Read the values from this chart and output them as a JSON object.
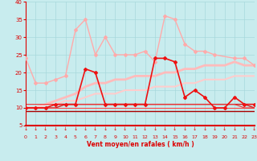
{
  "background_color": "#c8ecee",
  "grid_color": "#a8d8dc",
  "text_color": "#dd0000",
  "xlabel": "Vent moyen/en rafales ( km/h )",
  "xlim": [
    0,
    23
  ],
  "ylim": [
    5,
    40
  ],
  "yticks": [
    5,
    10,
    15,
    20,
    25,
    30,
    35,
    40
  ],
  "xticks": [
    0,
    1,
    2,
    3,
    4,
    5,
    6,
    7,
    8,
    9,
    10,
    11,
    12,
    13,
    14,
    15,
    16,
    17,
    18,
    19,
    20,
    21,
    22,
    23
  ],
  "series": [
    {
      "label": "rafales_max",
      "x": [
        0,
        1,
        2,
        3,
        4,
        5,
        6,
        7,
        8,
        9,
        10,
        11,
        12,
        13,
        14,
        15,
        16,
        17,
        18,
        19,
        21,
        22,
        23
      ],
      "y": [
        24,
        17,
        17,
        18,
        19,
        32,
        35,
        25,
        30,
        25,
        25,
        25,
        26,
        23,
        36,
        35,
        28,
        26,
        26,
        25,
        24,
        24,
        22
      ],
      "color": "#ffaaaa",
      "lw": 1.0,
      "marker": "D",
      "ms": 2.0,
      "zorder": 3
    },
    {
      "label": "vent_max",
      "x": [
        0,
        1,
        2,
        3,
        4,
        5,
        6,
        7,
        8,
        9,
        10,
        11,
        12,
        13,
        14,
        15,
        16,
        17,
        18,
        19,
        20,
        21,
        22,
        23
      ],
      "y": [
        10,
        10,
        10,
        11,
        11,
        11,
        21,
        20,
        11,
        11,
        11,
        11,
        11,
        24,
        24,
        23,
        13,
        15,
        13,
        10,
        10,
        13,
        11,
        11
      ],
      "color": "#ee1111",
      "lw": 1.2,
      "marker": "D",
      "ms": 2.0,
      "zorder": 4
    },
    {
      "label": "mean_trend",
      "x": [
        0,
        1,
        2,
        3,
        4,
        5,
        6,
        7,
        8,
        9,
        10,
        11,
        12,
        13,
        14,
        15,
        16,
        17,
        18,
        19,
        20,
        21,
        22,
        23
      ],
      "y": [
        10,
        10,
        11,
        12,
        13,
        14,
        16,
        17,
        17,
        18,
        18,
        19,
        19,
        19,
        20,
        20,
        21,
        21,
        22,
        22,
        22,
        23,
        22,
        22
      ],
      "color": "#ffbbbb",
      "lw": 2.0,
      "marker": null,
      "ms": 0,
      "zorder": 2
    },
    {
      "label": "line_a",
      "x": [
        0,
        1,
        2,
        3,
        4,
        5,
        6,
        7,
        8,
        9,
        10,
        11,
        12,
        13,
        14,
        15,
        16,
        17,
        18,
        19,
        20,
        21,
        22,
        23
      ],
      "y": [
        10,
        10,
        11,
        11,
        12,
        12,
        13,
        14,
        14,
        14,
        15,
        15,
        15,
        16,
        16,
        16,
        17,
        17,
        18,
        18,
        18,
        19,
        19,
        19
      ],
      "color": "#ffcccc",
      "lw": 1.5,
      "marker": null,
      "ms": 0,
      "zorder": 2
    },
    {
      "label": "line_b",
      "x": [
        0,
        1,
        2,
        3,
        4,
        5,
        6,
        7,
        8,
        9,
        10,
        11,
        12,
        13,
        14,
        15,
        16,
        17,
        18,
        19,
        20,
        21,
        22,
        23
      ],
      "y": [
        10,
        10,
        10,
        10,
        11,
        11,
        11,
        11,
        11,
        11,
        11,
        11,
        11,
        11,
        11,
        11,
        11,
        11,
        11,
        11,
        11,
        11,
        11,
        10
      ],
      "color": "#cc2222",
      "lw": 1.0,
      "marker": null,
      "ms": 0,
      "zorder": 2
    },
    {
      "label": "line_c",
      "x": [
        0,
        1,
        2,
        3,
        4,
        5,
        6,
        7,
        8,
        9,
        10,
        11,
        12,
        13,
        14,
        15,
        16,
        17,
        18,
        19,
        20,
        21,
        22,
        23
      ],
      "y": [
        9,
        9,
        9,
        9,
        9,
        9,
        9,
        9,
        9,
        9,
        9,
        9,
        9,
        9,
        9,
        9,
        9,
        9,
        9,
        9,
        9,
        9,
        9,
        9
      ],
      "color": "#aa0000",
      "lw": 1.0,
      "marker": null,
      "ms": 0,
      "zorder": 2
    },
    {
      "label": "line_d",
      "x": [
        0,
        1,
        2,
        3,
        4,
        5,
        6,
        7,
        8,
        9,
        10,
        11,
        12,
        13,
        14,
        15,
        16,
        17,
        18,
        19,
        20,
        21,
        22,
        23
      ],
      "y": [
        10,
        10,
        10,
        10,
        10,
        10,
        10,
        10,
        10,
        10,
        10,
        10,
        10,
        10,
        10,
        10,
        10,
        10,
        10,
        10,
        10,
        10,
        10,
        10
      ],
      "color": "#ff4444",
      "lw": 0.8,
      "marker": null,
      "ms": 0,
      "zorder": 2
    },
    {
      "label": "line_e",
      "x": [
        0,
        1,
        2,
        3,
        4,
        5,
        6,
        7,
        8,
        9,
        10,
        11,
        12,
        13,
        14,
        15,
        16,
        17,
        18,
        19,
        20,
        21,
        22,
        23
      ],
      "y": [
        11,
        11,
        11,
        11,
        11,
        11,
        11,
        11,
        11,
        11,
        11,
        11,
        11,
        11,
        11,
        11,
        11,
        11,
        11,
        11,
        11,
        11,
        10,
        10
      ],
      "color": "#ee3333",
      "lw": 0.8,
      "marker": null,
      "ms": 0,
      "zorder": 2
    }
  ]
}
